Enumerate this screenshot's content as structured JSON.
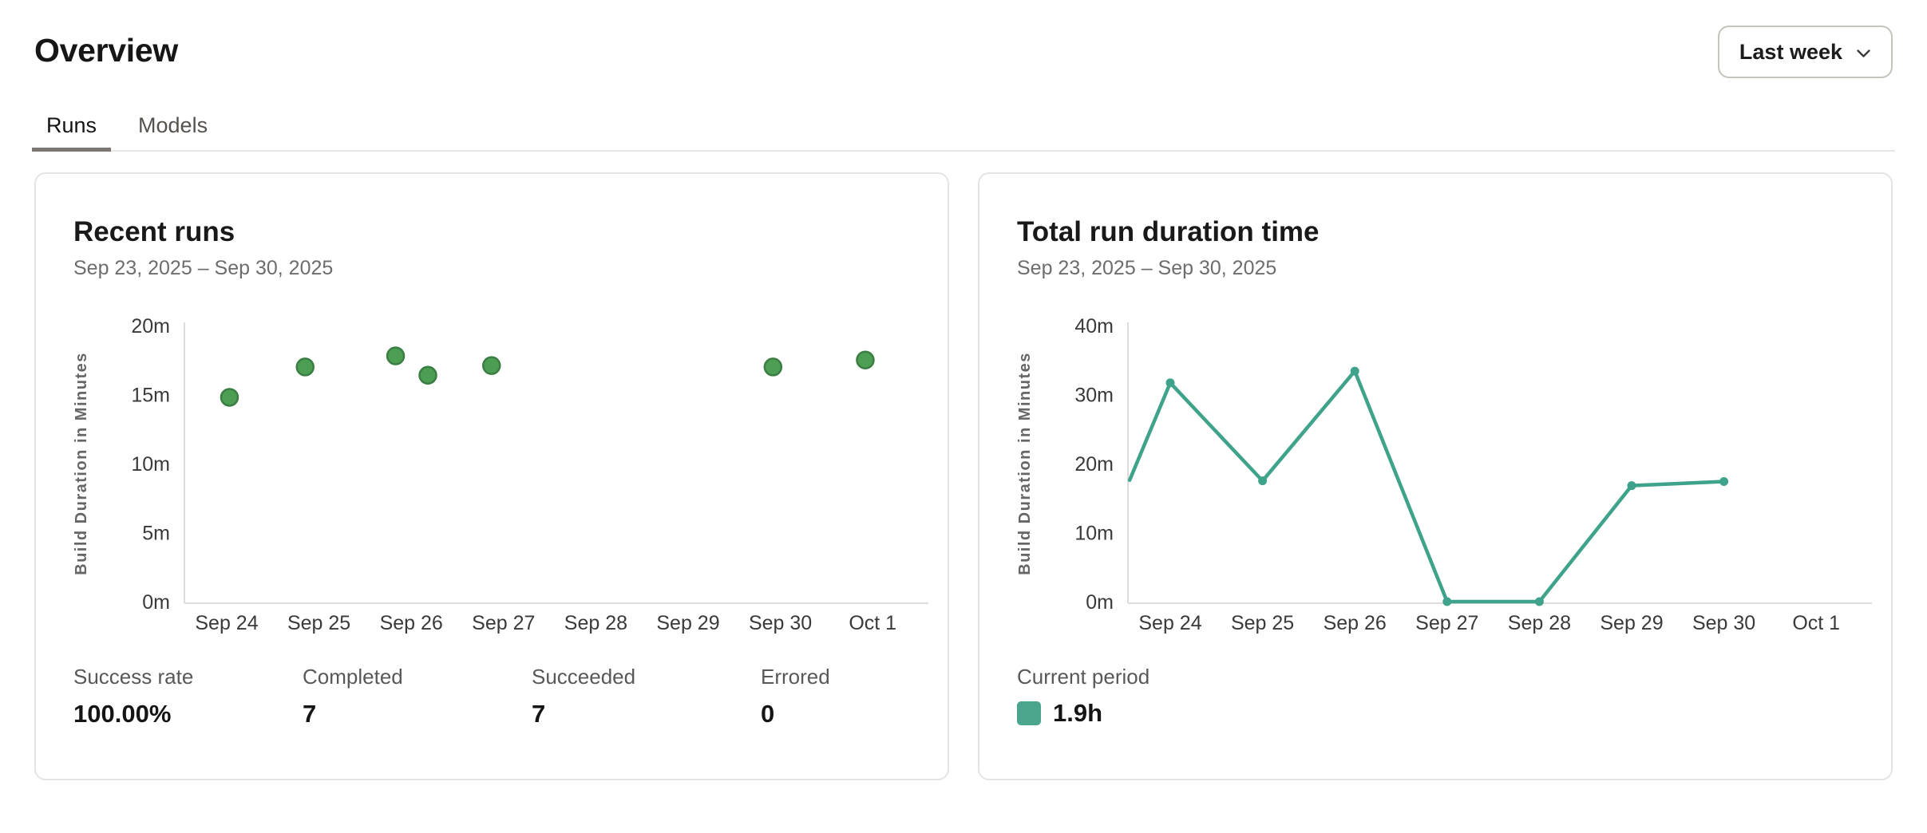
{
  "page": {
    "title": "Overview"
  },
  "period_selector": {
    "label": "Last week",
    "icon": "chevron-down-icon"
  },
  "tabs": [
    {
      "label": "Runs",
      "active": true
    },
    {
      "label": "Models",
      "active": false
    }
  ],
  "chart_data": [
    {
      "type": "scatter",
      "title": "Recent runs",
      "subtitle": "Sep 23, 2025 – Sep 30, 2025",
      "ylabel": "Build Duration in Minutes",
      "xlabel": "",
      "x_tick_labels": [
        "Sep 24",
        "Sep 25",
        "Sep 26",
        "Sep 27",
        "Sep 28",
        "Sep 29",
        "Sep 30",
        "Oct 1"
      ],
      "y_tick_values": [
        0,
        5,
        10,
        15,
        20
      ],
      "y_tick_labels": [
        "0m",
        "5m",
        "10m",
        "15m",
        "20m"
      ],
      "ylim": [
        0,
        20
      ],
      "points": [
        {
          "x": 1.03,
          "y": 14.8
        },
        {
          "x": 1.85,
          "y": 17.0
        },
        {
          "x": 2.83,
          "y": 17.8
        },
        {
          "x": 3.18,
          "y": 16.4
        },
        {
          "x": 3.87,
          "y": 17.1
        },
        {
          "x": 6.92,
          "y": 17.0
        },
        {
          "x": 7.92,
          "y": 17.5
        }
      ],
      "point_color": "#4C9E53",
      "point_stroke_color": "#3B7D42",
      "stats": [
        {
          "label": "Success rate",
          "value": "100.00%"
        },
        {
          "label": "Completed",
          "value": "7"
        },
        {
          "label": "Succeeded",
          "value": "7"
        },
        {
          "label": "Errored",
          "value": "0"
        }
      ]
    },
    {
      "type": "line",
      "title": "Total run duration time",
      "subtitle": "Sep 23, 2025 – Sep 30, 2025",
      "ylabel": "Build Duration in Minutes",
      "xlabel": "",
      "x_tick_labels": [
        "Sep 24",
        "Sep 25",
        "Sep 26",
        "Sep 27",
        "Sep 28",
        "Sep 29",
        "Sep 30",
        "Oct 1"
      ],
      "y_tick_values": [
        0,
        10,
        20,
        30,
        40
      ],
      "y_tick_labels": [
        "0m",
        "10m",
        "20m",
        "30m",
        "40m"
      ],
      "ylim": [
        0,
        40
      ],
      "points": [
        {
          "x": 0.56,
          "y": 17.6,
          "marker": false
        },
        {
          "x": 1,
          "y": 31.7
        },
        {
          "x": 2,
          "y": 17.5
        },
        {
          "x": 3,
          "y": 33.4
        },
        {
          "x": 4,
          "y": 0
        },
        {
          "x": 5,
          "y": 0
        },
        {
          "x": 6,
          "y": 16.8
        },
        {
          "x": 7,
          "y": 17.4
        }
      ],
      "line_color": "#3FA38B",
      "legend": {
        "label": "Current period",
        "value": "1.9h",
        "swatch_color": "#4BA48C"
      }
    }
  ]
}
